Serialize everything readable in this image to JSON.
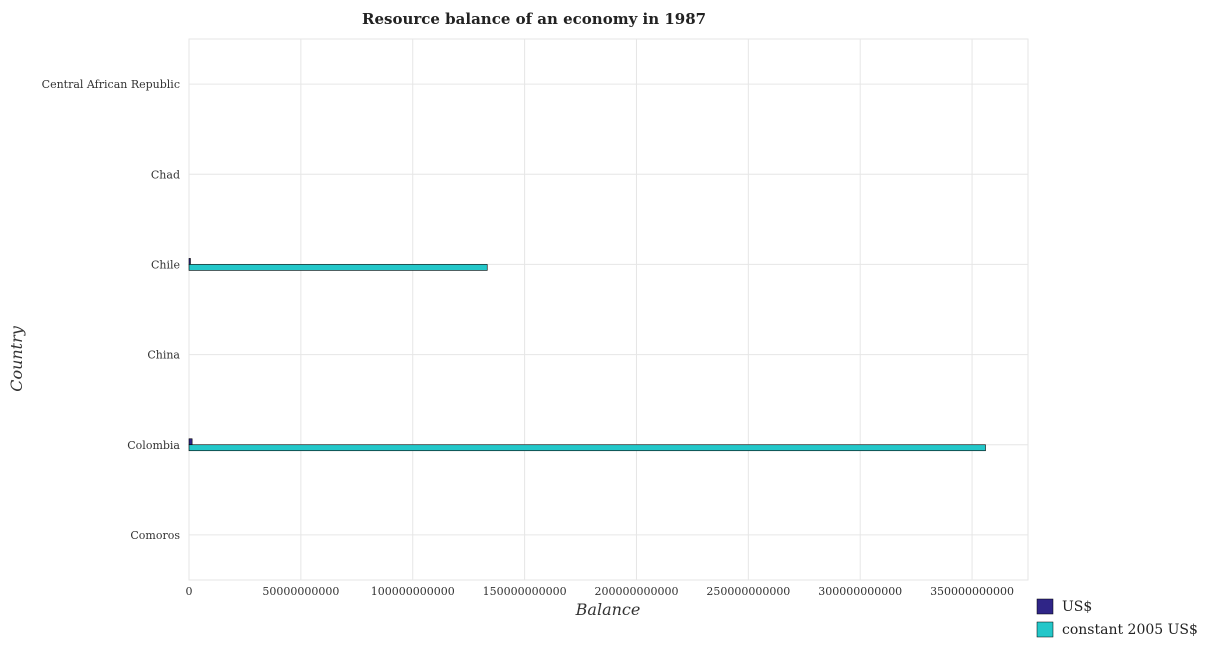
{
  "chart_data": {
    "type": "bar",
    "orientation": "horizontal",
    "title": "Resource balance of an economy in 1987",
    "xlabel": "Balance",
    "ylabel": "Country",
    "categories": [
      "Central African Republic",
      "Chad",
      "Chile",
      "China",
      "Colombia",
      "Comoros"
    ],
    "series": [
      {
        "name": "US$",
        "color": "#2f2587",
        "values": [
          0,
          0,
          650000000,
          0,
          1400000000,
          0
        ]
      },
      {
        "name": "constant 2005 US$",
        "color": "#23c7c9",
        "values": [
          0,
          0,
          133300000000,
          0,
          356000000000,
          0
        ]
      }
    ],
    "xlim": [
      0,
      375000000000
    ],
    "xticks": [
      0,
      50000000000,
      100000000000,
      150000000000,
      200000000000,
      250000000000,
      300000000000,
      350000000000
    ],
    "xtick_labels": [
      "0",
      "50000000000",
      "100000000000",
      "150000000000",
      "200000000000",
      "250000000000",
      "300000000000",
      "350000000000"
    ],
    "grid": true,
    "legend_position": "bottom-right"
  }
}
